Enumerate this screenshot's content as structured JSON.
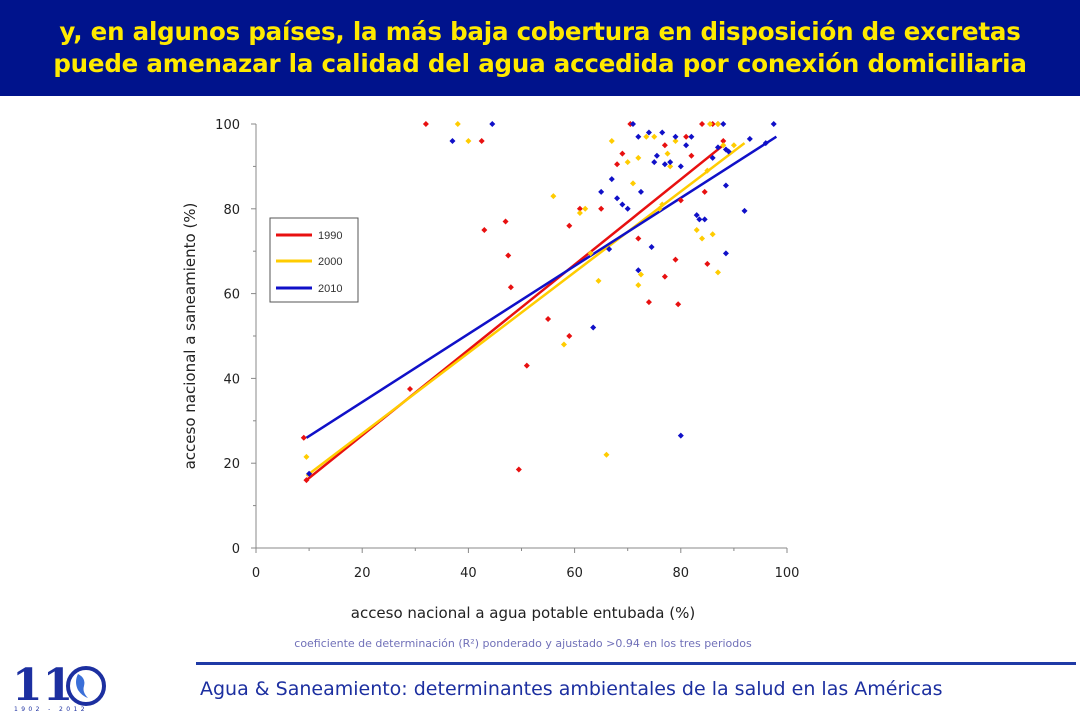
{
  "header": {
    "line1": "y, en algunos países, la más baja cobertura en disposición de excretas",
    "line2": "puede amenazar la calidad del agua accedida por conexión domiciliaria"
  },
  "colors": {
    "header_bg": "#00138c",
    "header_text": "#ffea00",
    "footer_text": "#1c2fa0"
  },
  "chart_data": {
    "type": "scatter",
    "xlabel": "acceso nacional a agua potable entubada (%)",
    "ylabel": "acceso nacional a saneamiento (%)",
    "note": "coeficiente de determinación (R²) ponderado y ajustado >0.94 en los tres periodos",
    "xlim": [
      0,
      100
    ],
    "ylim": [
      0,
      100
    ],
    "x_ticks": [
      "0",
      "20",
      "40",
      "60",
      "80",
      "100"
    ],
    "y_ticks": [
      "0",
      "20",
      "40",
      "60",
      "80",
      "100"
    ],
    "legend_position": "top-left",
    "series": [
      {
        "name": "1990",
        "color": "#e81010",
        "trend": [
          [
            9.5,
            16
          ],
          [
            88,
            95
          ]
        ],
        "points": [
          [
            9,
            26
          ],
          [
            9.5,
            16
          ],
          [
            29,
            37.5
          ],
          [
            32,
            100
          ],
          [
            42.5,
            96
          ],
          [
            43,
            75
          ],
          [
            47,
            77
          ],
          [
            47.5,
            69
          ],
          [
            48,
            61.5
          ],
          [
            49.5,
            18.5
          ],
          [
            51,
            43
          ],
          [
            55,
            54
          ],
          [
            59,
            50
          ],
          [
            59,
            76
          ],
          [
            61,
            80
          ],
          [
            65,
            80
          ],
          [
            68,
            90.5
          ],
          [
            69,
            93
          ],
          [
            70.5,
            100
          ],
          [
            72,
            73
          ],
          [
            74,
            58
          ],
          [
            77,
            64
          ],
          [
            77,
            95
          ],
          [
            79,
            68
          ],
          [
            79.5,
            57.5
          ],
          [
            80,
            82
          ],
          [
            81,
            97
          ],
          [
            82,
            92.5
          ],
          [
            84,
            100
          ],
          [
            84.5,
            84
          ],
          [
            85,
            67
          ],
          [
            86,
            100
          ],
          [
            87,
            100
          ],
          [
            88,
            96
          ]
        ]
      },
      {
        "name": "2000",
        "color": "#ffcc00",
        "trend": [
          [
            9.5,
            17
          ],
          [
            92,
            95.5
          ]
        ],
        "points": [
          [
            9.5,
            21.5
          ],
          [
            38,
            100
          ],
          [
            40,
            96
          ],
          [
            56,
            83
          ],
          [
            58,
            48
          ],
          [
            61,
            79
          ],
          [
            62,
            80
          ],
          [
            63,
            69.5
          ],
          [
            64.5,
            63
          ],
          [
            66,
            22
          ],
          [
            67,
            96
          ],
          [
            70,
            91
          ],
          [
            71,
            86
          ],
          [
            72,
            92
          ],
          [
            72,
            62
          ],
          [
            72.5,
            64.5
          ],
          [
            73.5,
            97
          ],
          [
            75,
            97
          ],
          [
            76,
            80
          ],
          [
            76.5,
            81
          ],
          [
            77.5,
            93
          ],
          [
            78,
            90
          ],
          [
            79,
            96
          ],
          [
            83,
            75
          ],
          [
            84,
            73
          ],
          [
            85,
            89
          ],
          [
            85.5,
            100
          ],
          [
            86,
            74
          ],
          [
            87,
            65
          ],
          [
            87,
            100
          ],
          [
            88,
            95
          ],
          [
            90,
            95
          ]
        ]
      },
      {
        "name": "2010",
        "color": "#1010c8",
        "trend": [
          [
            9.5,
            26
          ],
          [
            98,
            97
          ]
        ],
        "points": [
          [
            10,
            17.5
          ],
          [
            37,
            96
          ],
          [
            44.5,
            100
          ],
          [
            63.5,
            52
          ],
          [
            65,
            84
          ],
          [
            66.5,
            70.5
          ],
          [
            67,
            87
          ],
          [
            68,
            82.5
          ],
          [
            69,
            81
          ],
          [
            70,
            80
          ],
          [
            71,
            100
          ],
          [
            72,
            97
          ],
          [
            72,
            65.5
          ],
          [
            72.5,
            84
          ],
          [
            74,
            98
          ],
          [
            74.5,
            71
          ],
          [
            75,
            91
          ],
          [
            75.5,
            92.5
          ],
          [
            76.5,
            98
          ],
          [
            77,
            90.5
          ],
          [
            78,
            91
          ],
          [
            79,
            97
          ],
          [
            80,
            90
          ],
          [
            80,
            26.5
          ],
          [
            81,
            95
          ],
          [
            82,
            97
          ],
          [
            83,
            78.5
          ],
          [
            83.5,
            77.5
          ],
          [
            84.5,
            77.5
          ],
          [
            86,
            92
          ],
          [
            87,
            94.5
          ],
          [
            88,
            100
          ],
          [
            88.5,
            94
          ],
          [
            88.5,
            85.5
          ],
          [
            88.5,
            69.5
          ],
          [
            89,
            93.5
          ],
          [
            92,
            79.5
          ],
          [
            93,
            96.5
          ],
          [
            96,
            95.5
          ],
          [
            97.5,
            100
          ]
        ]
      }
    ]
  },
  "footer": {
    "text": "Agua & Saneamiento: determinantes ambientales de la salud en las Américas",
    "logo_number": "110",
    "logo_years": "1902 - 2012"
  }
}
